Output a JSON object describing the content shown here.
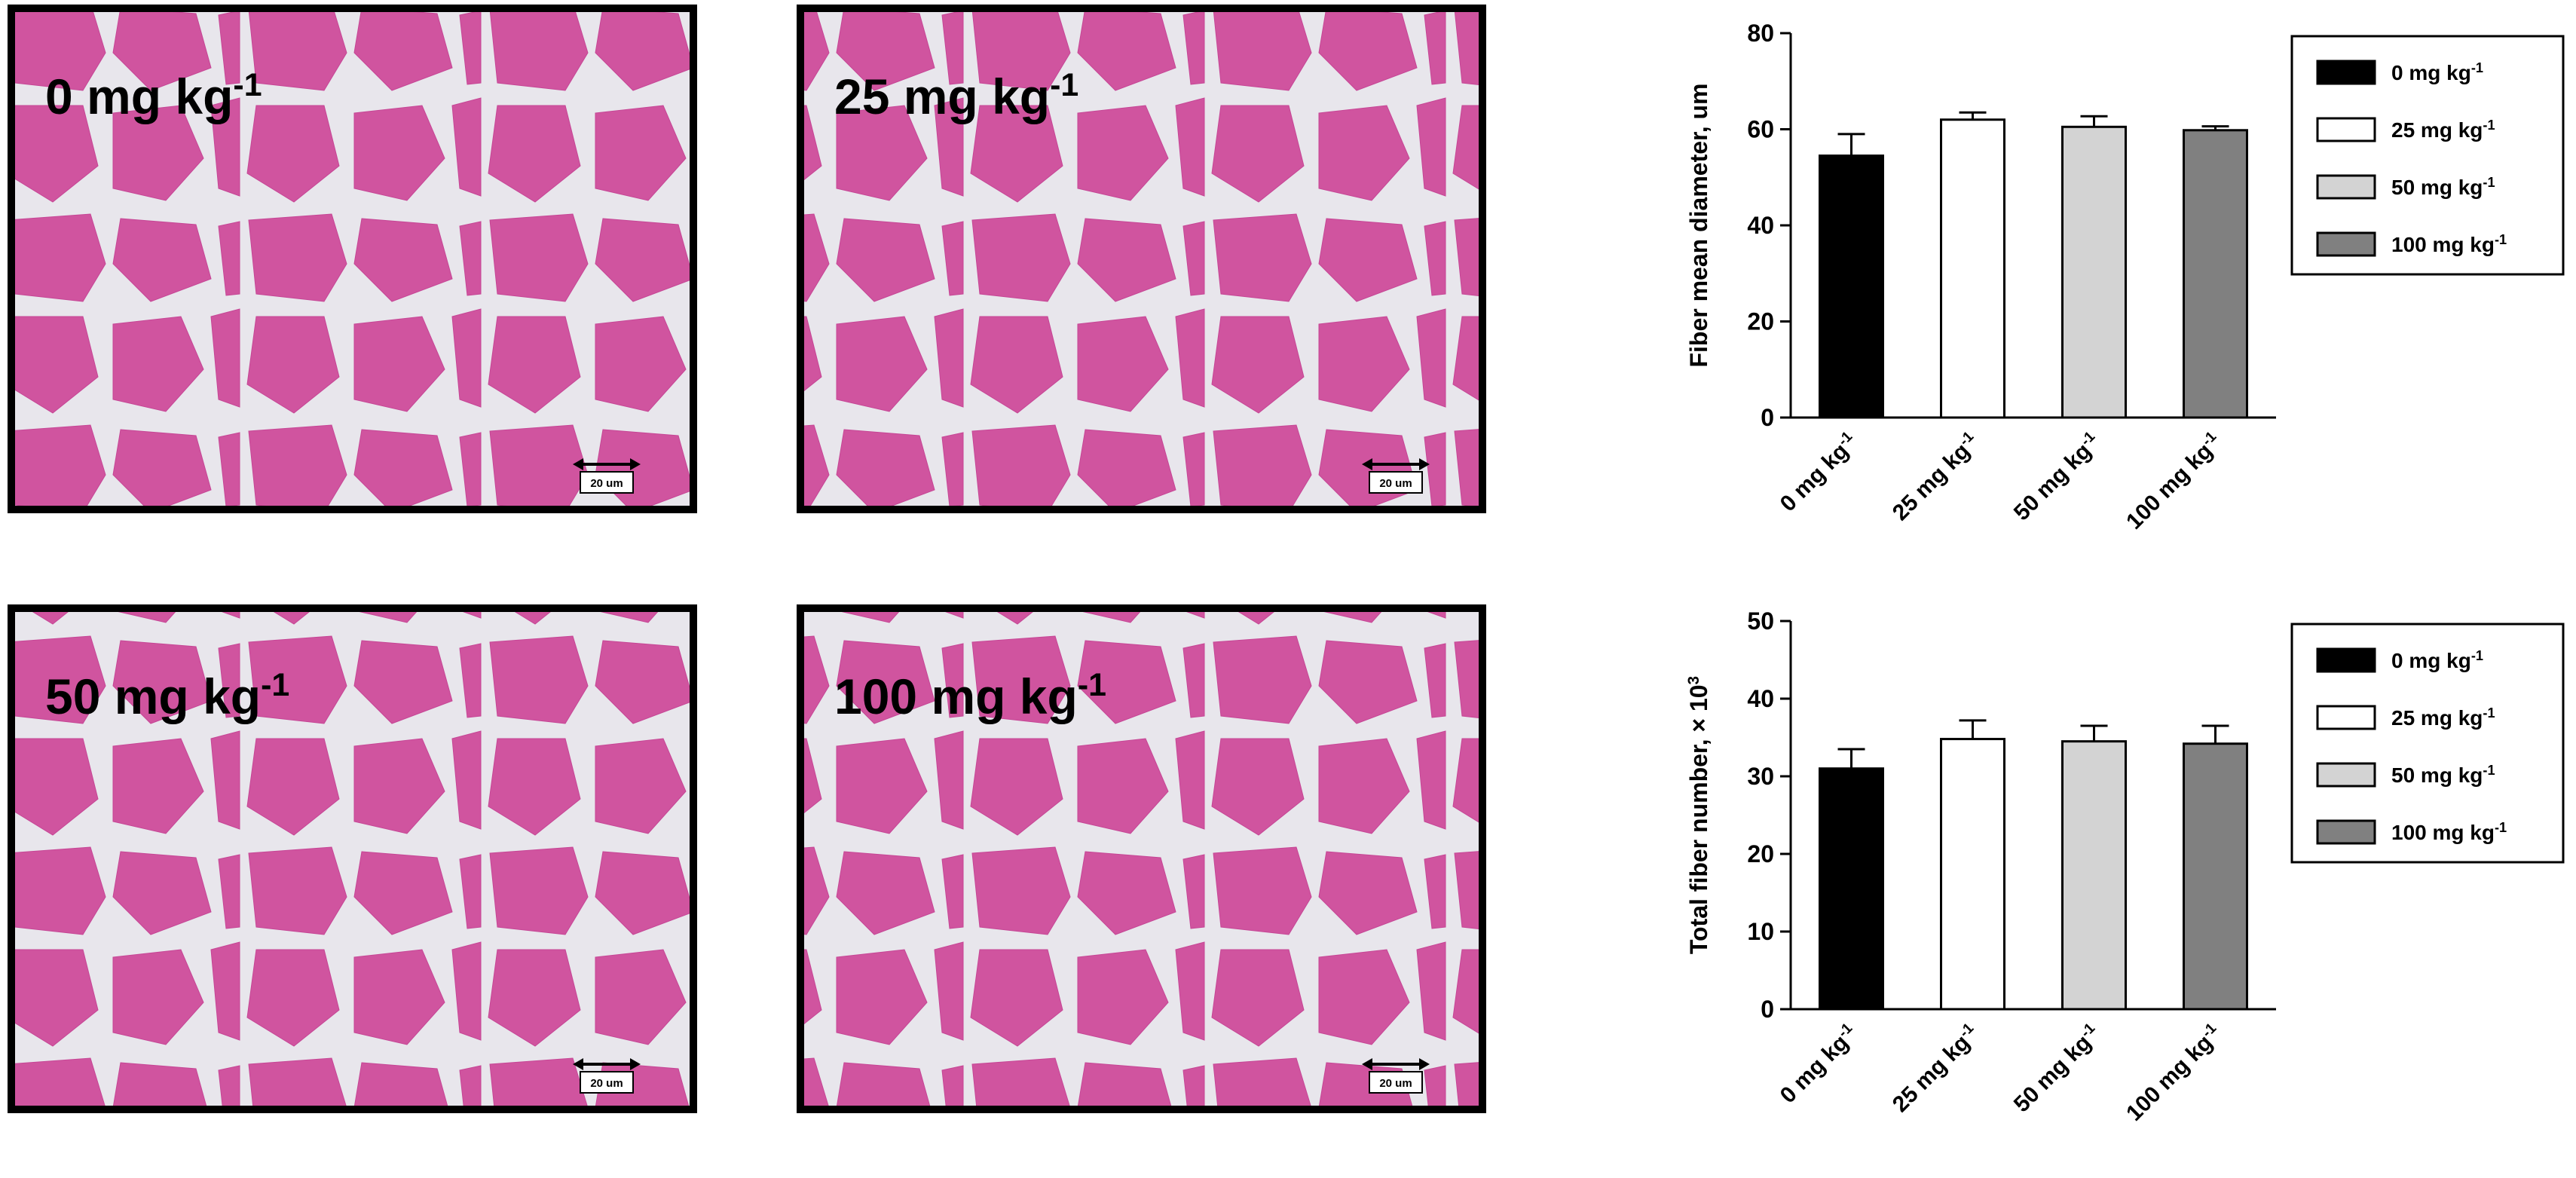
{
  "panels": [
    {
      "label": "0 mg kg",
      "label_superscript": "-1",
      "scale_bar": "20 um"
    },
    {
      "label": "25 mg kg",
      "label_superscript": "-1",
      "scale_bar": "20 um"
    },
    {
      "label": "50 mg kg",
      "label_superscript": "-1",
      "scale_bar": "20 um"
    },
    {
      "label": "100 mg kg",
      "label_superscript": "-1",
      "scale_bar": "20 um"
    }
  ],
  "chart_data": [
    {
      "type": "bar",
      "ylabel": "Fiber mean diameter, um",
      "categories": [
        "0 mg kg",
        "25 mg kg",
        "50 mg kg",
        "100 mg kg"
      ],
      "category_superscript": "-1",
      "values": [
        54.5,
        62,
        60.5,
        59.8
      ],
      "errors": [
        4.5,
        1.5,
        2.2,
        0.8
      ],
      "colors": [
        "#000000",
        "#ffffff",
        "#d3d3d3",
        "#808080"
      ],
      "ylim": [
        0,
        80
      ],
      "yticks": [
        0,
        20,
        40,
        60,
        80
      ],
      "legend": "right"
    },
    {
      "type": "bar",
      "ylabel": "Total fiber number, × 10",
      "ylabel_superscript": "3",
      "categories": [
        "0 mg kg",
        "25 mg kg",
        "50 mg kg",
        "100 mg kg"
      ],
      "category_superscript": "-1",
      "values": [
        31,
        34.8,
        34.5,
        34.2
      ],
      "errors": [
        2.5,
        2.4,
        2,
        2.3
      ],
      "colors": [
        "#000000",
        "#ffffff",
        "#d3d3d3",
        "#808080"
      ],
      "ylim": [
        0,
        50
      ],
      "yticks": [
        0,
        10,
        20,
        30,
        40,
        50
      ],
      "legend": "right"
    }
  ]
}
